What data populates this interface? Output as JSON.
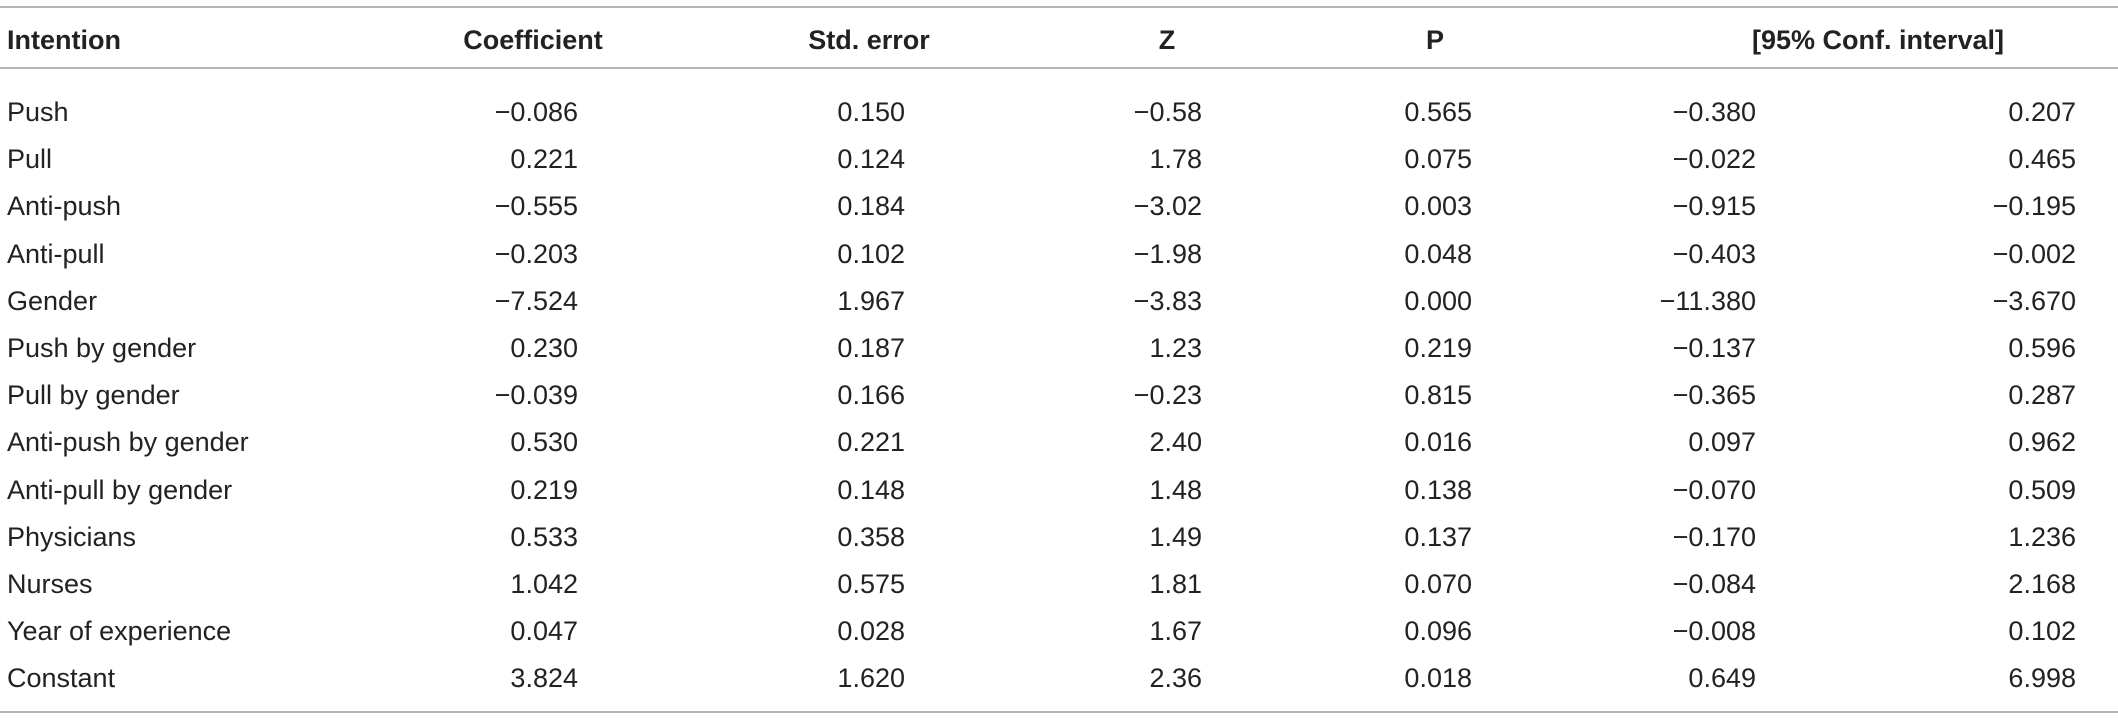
{
  "table": {
    "header": [
      "Intention",
      "Coefficient",
      "Std. error",
      "Z",
      "P",
      "[95% Conf. interval]"
    ],
    "rows": [
      [
        "Push",
        "−0.086",
        "0.150",
        "−0.58",
        "0.565",
        "−0.380",
        "0.207"
      ],
      [
        "Pull",
        "0.221",
        "0.124",
        "1.78",
        "0.075",
        "−0.022",
        "0.465"
      ],
      [
        "Anti-push",
        "−0.555",
        "0.184",
        "−3.02",
        "0.003",
        "−0.915",
        "−0.195"
      ],
      [
        "Anti-pull",
        "−0.203",
        "0.102",
        "−1.98",
        "0.048",
        "−0.403",
        "−0.002"
      ],
      [
        "Gender",
        "−7.524",
        "1.967",
        "−3.83",
        "0.000",
        "−11.380",
        "−3.670"
      ],
      [
        "Push by gender",
        "0.230",
        "0.187",
        "1.23",
        "0.219",
        "−0.137",
        "0.596"
      ],
      [
        "Pull by gender",
        "−0.039",
        "0.166",
        "−0.23",
        "0.815",
        "−0.365",
        "0.287"
      ],
      [
        "Anti-push by gender",
        "0.530",
        "0.221",
        "2.40",
        "0.016",
        "0.097",
        "0.962"
      ],
      [
        "Anti-pull by gender",
        "0.219",
        "0.148",
        "1.48",
        "0.138",
        "−0.070",
        "0.509"
      ],
      [
        "Physicians",
        "0.533",
        "0.358",
        "1.49",
        "0.137",
        "−0.170",
        "1.236"
      ],
      [
        "Nurses",
        "1.042",
        "0.575",
        "1.81",
        "0.070",
        "−0.084",
        "2.168"
      ],
      [
        "Year of experience",
        "0.047",
        "0.028",
        "1.67",
        "0.096",
        "−0.008",
        "0.102"
      ],
      [
        "Constant",
        "3.824",
        "1.620",
        "2.36",
        "0.018",
        "0.649",
        "6.998"
      ]
    ]
  }
}
